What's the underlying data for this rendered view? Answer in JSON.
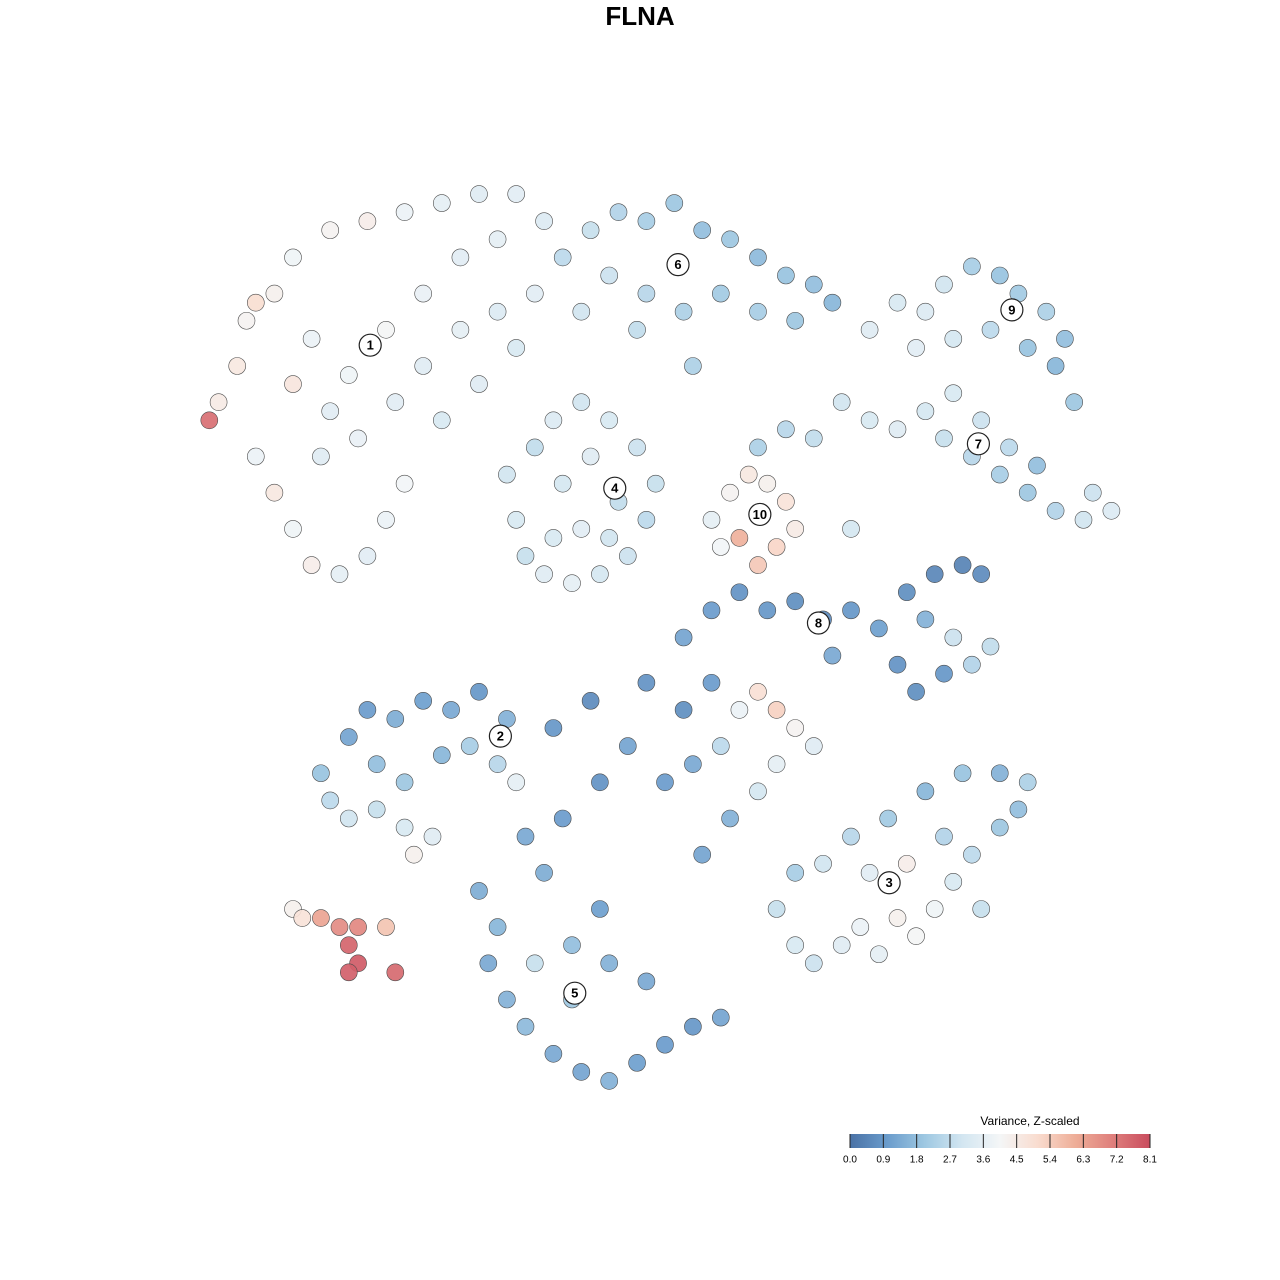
{
  "chart_data": {
    "type": "scatter",
    "title": "FLNA",
    "colorbar_label": "Variance, Z-scaled",
    "xlim": [
      0,
      100
    ],
    "ylim": [
      0,
      100
    ],
    "clim": [
      0,
      8.1
    ],
    "colormap": [
      "#4a72a6",
      "#6a9ccc",
      "#9ec8e2",
      "#d3e6f1",
      "#f4f6f7",
      "#f9dccf",
      "#eeae98",
      "#df7f7c",
      "#c94c5e"
    ],
    "cticks": [
      {
        "value": 0,
        "label": "0.0"
      },
      0.9,
      1.8,
      2.7,
      3.6,
      4.5,
      5.4,
      6.3,
      7.2,
      8.1
    ],
    "x": [
      1,
      2,
      4,
      5,
      8,
      10,
      14,
      18,
      22,
      26,
      30,
      34,
      37,
      6,
      8,
      10,
      12,
      15,
      18,
      20,
      22,
      14,
      16,
      20,
      24,
      28,
      32,
      24,
      28,
      32,
      36,
      12,
      10,
      13,
      17,
      21,
      26,
      30,
      34,
      6,
      39,
      42,
      45,
      48,
      51,
      54,
      57,
      60,
      63,
      66,
      68,
      44,
      48,
      52,
      56,
      60,
      64,
      47,
      53,
      41,
      72,
      75,
      78,
      80,
      83,
      86,
      88,
      91,
      93,
      92,
      89,
      85,
      81,
      77,
      94,
      69,
      72,
      75,
      78,
      80,
      83,
      86,
      89,
      92,
      95,
      98,
      96,
      90,
      87,
      84,
      81,
      66,
      63,
      60,
      70,
      33,
      34,
      35,
      37,
      40,
      43,
      46,
      48,
      49,
      47,
      44,
      41,
      38,
      36,
      39,
      42,
      45,
      41,
      38,
      44,
      55,
      57,
      59,
      61,
      63,
      64,
      62,
      60,
      58,
      56,
      52,
      55,
      58,
      61,
      64,
      67,
      70,
      73,
      76,
      79,
      82,
      84,
      75,
      77,
      80,
      83,
      85,
      81,
      78,
      68,
      14,
      16,
      19,
      22,
      25,
      23,
      16,
      18,
      21,
      24,
      27,
      30,
      33,
      19,
      22,
      26,
      29,
      32,
      34,
      13,
      10,
      11,
      13,
      15,
      17,
      16,
      17,
      16,
      21,
      20,
      30,
      32,
      31,
      33,
      35,
      38,
      41,
      44,
      47,
      50,
      53,
      56,
      40,
      36,
      40,
      44,
      48,
      43,
      37,
      39,
      43,
      46,
      38,
      42,
      35,
      62,
      64,
      66,
      69,
      71,
      73,
      75,
      77,
      79,
      81,
      83,
      86,
      88,
      89,
      86,
      82,
      78,
      74,
      70,
      67,
      72,
      76,
      80,
      64,
      84,
      50,
      53,
      56,
      58,
      60,
      62,
      64,
      66,
      57,
      54,
      60,
      52,
      48,
      55,
      62
    ],
    "y": [
      74,
      76,
      80,
      85,
      88,
      92,
      95,
      96,
      97,
      98,
      99,
      99,
      96,
      70,
      66,
      62,
      58,
      57,
      59,
      63,
      67,
      75,
      79,
      84,
      88,
      92,
      94,
      80,
      84,
      86,
      88,
      83,
      78,
      70,
      72,
      76,
      74,
      78,
      82,
      87,
      92,
      95,
      97,
      96,
      98,
      95,
      94,
      92,
      90,
      89,
      87,
      90,
      88,
      86,
      88,
      86,
      85,
      84,
      80,
      86,
      84,
      87,
      86,
      89,
      91,
      90,
      88,
      86,
      83,
      80,
      82,
      84,
      83,
      82,
      76,
      76,
      74,
      73,
      75,
      72,
      70,
      68,
      66,
      64,
      63,
      64,
      66,
      69,
      71,
      74,
      77,
      72,
      73,
      71,
      62,
      68,
      63,
      59,
      57,
      56,
      57,
      59,
      63,
      67,
      71,
      74,
      76,
      74,
      71,
      67,
      70,
      65,
      62,
      61,
      61,
      63,
      66,
      68,
      67,
      65,
      62,
      60,
      58,
      61,
      60,
      50,
      53,
      55,
      53,
      54,
      52,
      53,
      51,
      55,
      57,
      58,
      57,
      47,
      44,
      46,
      47,
      49,
      50,
      52,
      48,
      32,
      30,
      31,
      29,
      28,
      26,
      39,
      42,
      41,
      43,
      42,
      44,
      41,
      36,
      34,
      37,
      38,
      36,
      34,
      35,
      20,
      19,
      19,
      18,
      18,
      16,
      14,
      13,
      13,
      18,
      22,
      18,
      14,
      10,
      7,
      4,
      2,
      1,
      3,
      5,
      7,
      8,
      10,
      14,
      16,
      14,
      12,
      20,
      24,
      30,
      34,
      38,
      40,
      43,
      28,
      20,
      16,
      14,
      16,
      18,
      15,
      19,
      17,
      20,
      23,
      26,
      29,
      31,
      34,
      35,
      35,
      33,
      30,
      28,
      25,
      24,
      25,
      28,
      24,
      20,
      34,
      36,
      38,
      42,
      44,
      42,
      40,
      38,
      30,
      26,
      33,
      42,
      45,
      45,
      36
    ],
    "values": [
      7.4,
      4.5,
      4.6,
      4.2,
      4.3,
      3.9,
      4.2,
      4.4,
      3.8,
      3.6,
      3.4,
      3.5,
      3.3,
      3.8,
      4.6,
      3.9,
      4.4,
      3.6,
      3.5,
      3.8,
      4.0,
      3.5,
      3.9,
      4.1,
      3.7,
      3.5,
      3.6,
      3.4,
      3.6,
      3.3,
      3.5,
      3.8,
      4.7,
      3.4,
      3.7,
      3.5,
      3.2,
      3.4,
      3.2,
      5.0,
      2.6,
      2.8,
      2.4,
      2.2,
      2.0,
      1.8,
      2.0,
      1.7,
      1.9,
      1.8,
      1.6,
      2.9,
      2.5,
      2.3,
      2.1,
      2.2,
      2.0,
      2.7,
      2.3,
      3.0,
      3.4,
      3.2,
      3.3,
      3.0,
      2.2,
      1.9,
      2.1,
      2.3,
      1.8,
      1.6,
      1.9,
      2.6,
      3.1,
      3.5,
      2.0,
      3.0,
      3.2,
      3.4,
      3.1,
      2.8,
      2.5,
      2.2,
      2.0,
      2.4,
      3.0,
      3.3,
      2.9,
      1.8,
      2.6,
      2.9,
      3.2,
      2.7,
      2.5,
      2.3,
      3.1,
      3.0,
      3.2,
      2.8,
      3.4,
      3.6,
      3.1,
      2.9,
      2.6,
      2.8,
      2.9,
      3.2,
      3.0,
      3.3,
      2.7,
      3.1,
      3.4,
      2.7,
      3.5,
      3.2,
      3.0,
      3.6,
      4.2,
      4.6,
      4.3,
      4.8,
      4.5,
      5.2,
      5.5,
      6.0,
      4.0,
      1.2,
      1.0,
      0.8,
      0.9,
      0.7,
      0.6,
      0.9,
      1.1,
      0.7,
      0.5,
      0.4,
      0.6,
      0.8,
      0.7,
      0.9,
      2.4,
      2.7,
      2.9,
      1.5,
      1.3,
      2.6,
      3.0,
      2.8,
      3.2,
      3.4,
      4.3,
      1.2,
      1.0,
      1.4,
      1.1,
      1.3,
      0.9,
      1.5,
      1.8,
      2.0,
      1.6,
      2.2,
      2.5,
      3.6,
      1.9,
      4.3,
      4.8,
      6.3,
      6.8,
      6.9,
      7.6,
      7.8,
      7.7,
      7.5,
      5.6,
      1.4,
      1.6,
      1.3,
      1.5,
      1.7,
      1.3,
      1.2,
      1.5,
      1.1,
      1.0,
      0.9,
      1.2,
      2.0,
      2.8,
      1.8,
      1.5,
      1.3,
      1.1,
      1.4,
      1.0,
      0.8,
      1.2,
      0.9,
      0.6,
      1.3,
      2.8,
      3.2,
      2.9,
      3.4,
      3.8,
      3.6,
      4.3,
      4.1,
      3.9,
      3.2,
      2.6,
      2.0,
      1.8,
      2.3,
      1.5,
      1.9,
      1.6,
      2.1,
      2.5,
      3.0,
      3.5,
      4.4,
      2.4,
      2.2,
      2.8,
      1.0,
      1.3,
      2.6,
      3.8,
      4.9,
      5.3,
      4.2,
      3.4,
      1.5,
      1.2,
      3.1,
      0.7,
      0.8,
      1.0,
      3.6
    ],
    "clusters": [
      {
        "label": "1",
        "x": 18.3,
        "y": 82.3
      },
      {
        "label": "2",
        "x": 32.3,
        "y": 39.1
      },
      {
        "label": "3",
        "x": 74.1,
        "y": 22.9
      },
      {
        "label": "4",
        "x": 44.6,
        "y": 66.5
      },
      {
        "label": "5",
        "x": 40.3,
        "y": 10.7
      },
      {
        "label": "6",
        "x": 51.4,
        "y": 91.2
      },
      {
        "label": "7",
        "x": 83.7,
        "y": 71.4
      },
      {
        "label": "8",
        "x": 66.5,
        "y": 51.6
      },
      {
        "label": "9",
        "x": 87.3,
        "y": 86.2
      },
      {
        "label": "10",
        "x": 60.2,
        "y": 63.6
      }
    ]
  }
}
